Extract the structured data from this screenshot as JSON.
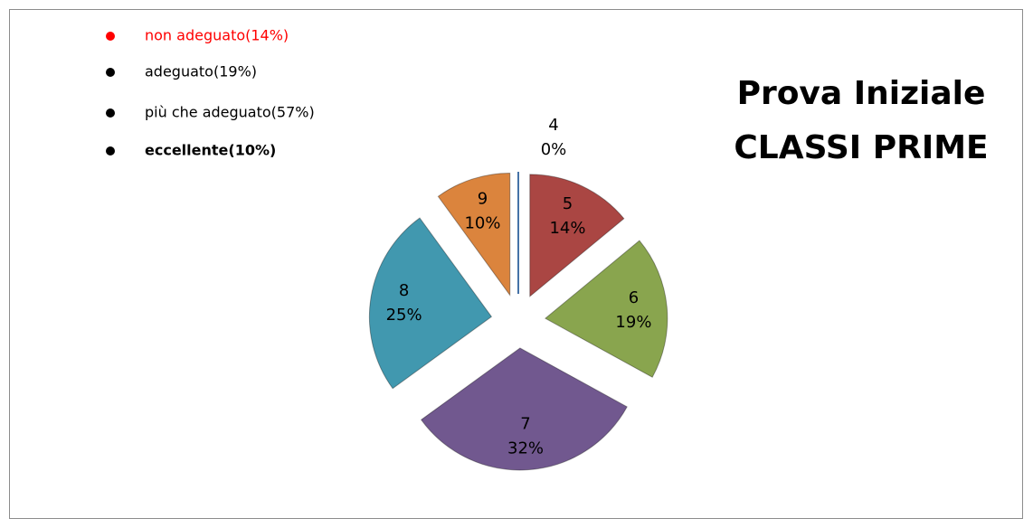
{
  "chart_data": {
    "type": "pie",
    "title": "Prova Iniziale",
    "subtitle": "CLASSI PRIME",
    "categories": [
      "4",
      "5",
      "6",
      "7",
      "8",
      "9"
    ],
    "values": [
      0,
      14,
      19,
      32,
      25,
      10
    ],
    "value_labels": [
      "0%",
      "14%",
      "19%",
      "32%",
      "25%",
      "10%"
    ],
    "colors": [
      "#4572a7",
      "#aa4643",
      "#89a54e",
      "#71588f",
      "#4198af",
      "#db843d"
    ],
    "legend": [
      {
        "text": "non adeguato(14%)",
        "color": "#ff0000"
      },
      {
        "text": "adeguato(19%)",
        "color": "#000000"
      },
      {
        "text": "più che adeguato(57%)",
        "color": "#000000"
      },
      {
        "text": "eccellente(10%)",
        "color": "#000000",
        "weight": "bold"
      }
    ]
  }
}
